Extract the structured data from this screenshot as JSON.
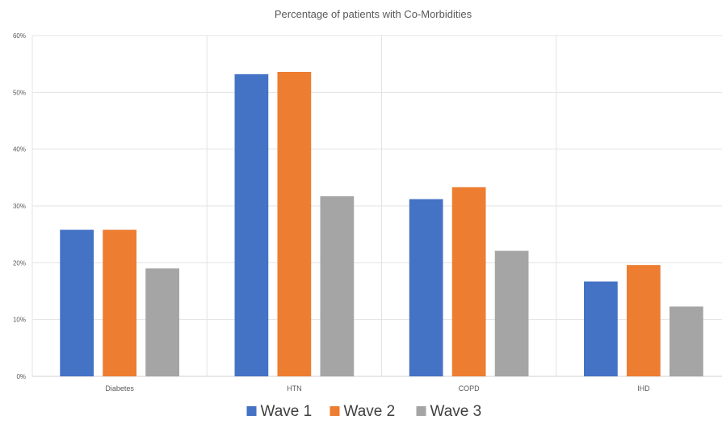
{
  "chart_data": {
    "type": "bar",
    "title": "Percentage of patients with Co-Morbidities",
    "xlabel": "",
    "ylabel": "",
    "categories": [
      "Diabetes",
      "HTN",
      "COPD",
      "IHD"
    ],
    "series": [
      {
        "name": "Wave 1",
        "color": "#4472c4",
        "values": [
          25.8,
          53.2,
          31.2,
          16.7
        ]
      },
      {
        "name": "Wave 2",
        "color": "#ed7d31",
        "values": [
          25.8,
          53.6,
          33.3,
          19.6
        ]
      },
      {
        "name": "Wave 3",
        "color": "#a5a5a5",
        "values": [
          19.0,
          31.7,
          22.1,
          12.3
        ]
      }
    ],
    "ylim": [
      0,
      60
    ],
    "yticks": [
      "0%",
      "10%",
      "20%",
      "30%",
      "40%",
      "50%",
      "60%"
    ],
    "grid": true,
    "legend_position": "bottom"
  }
}
